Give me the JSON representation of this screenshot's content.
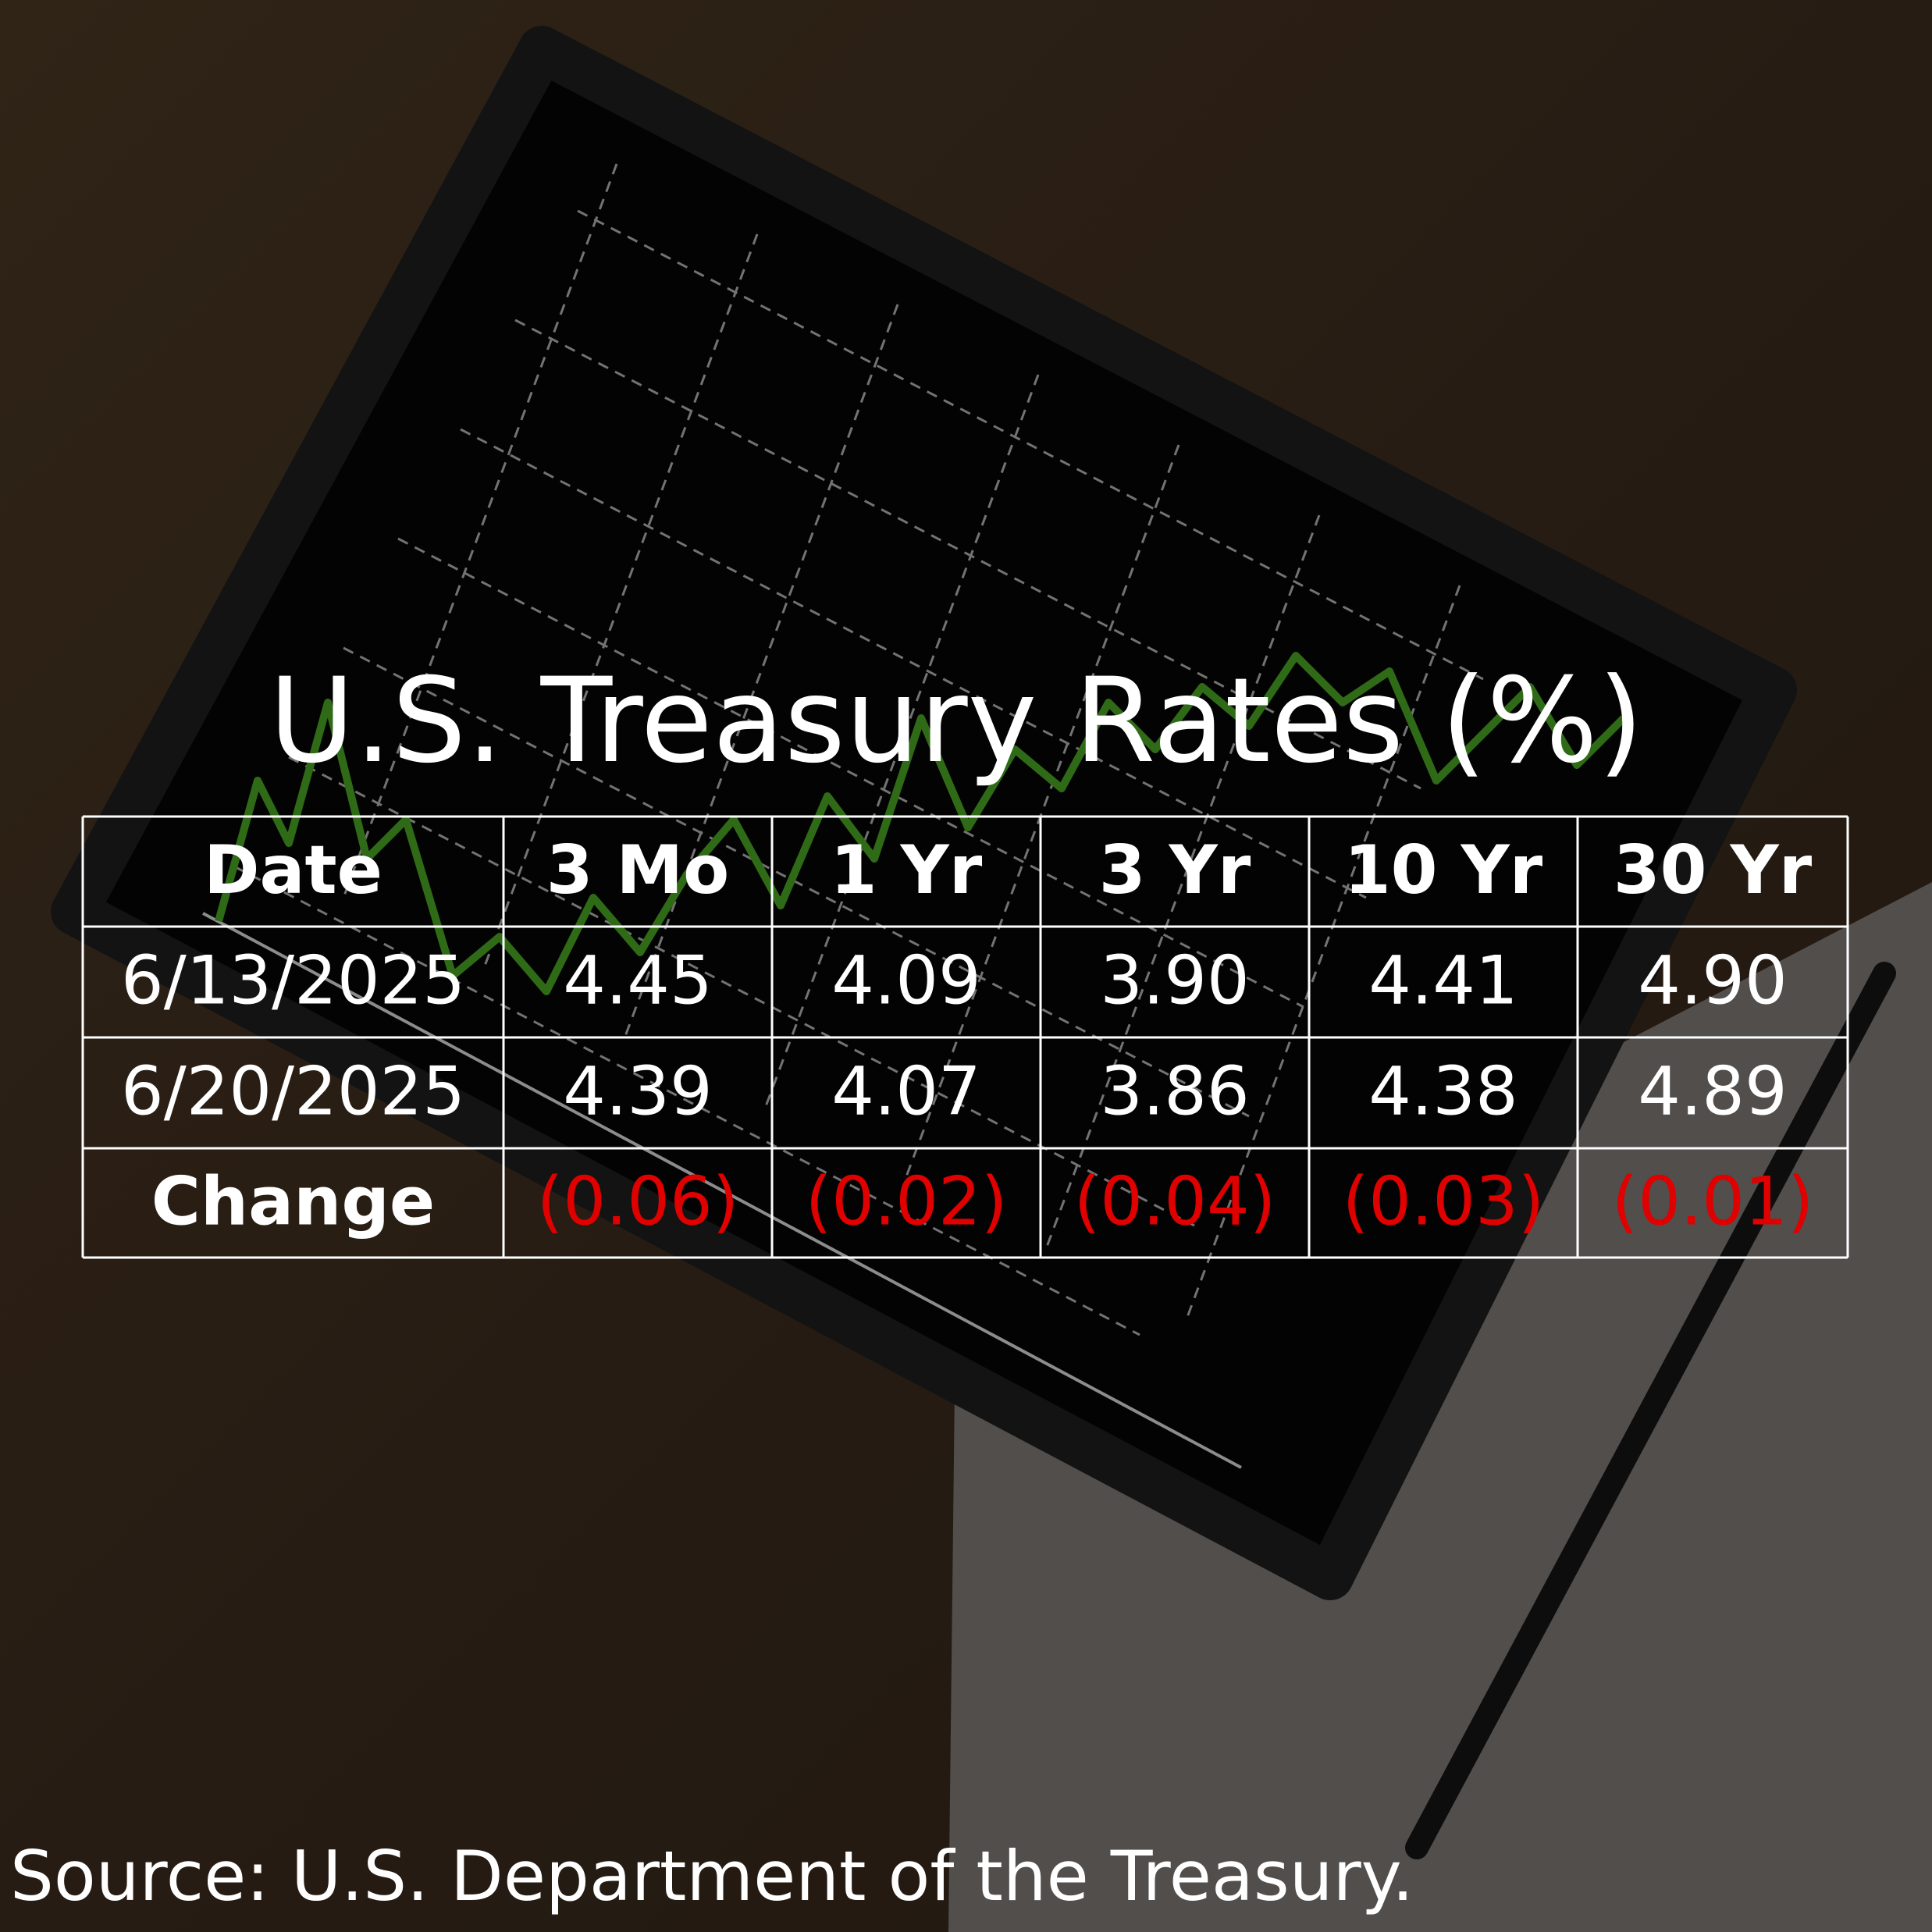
{
  "title": "U.S. Treasury Rates (%)",
  "table": {
    "header": [
      "Date",
      "3 Mo",
      "1 Yr",
      "3 Yr",
      "10 Yr",
      "30 Yr"
    ],
    "rows": [
      [
        "6/13/2025",
        "4.45",
        "4.09",
        "3.90",
        "4.41",
        "4.90"
      ],
      [
        "6/20/2025",
        "4.39",
        "4.07",
        "3.86",
        "4.38",
        "4.89"
      ],
      [
        "Change",
        "(0.06)",
        "(0.02)",
        "(0.04)",
        "(0.03)",
        "(0.01)"
      ]
    ]
  },
  "source": "Source: U.S. Department of the Treasury."
}
